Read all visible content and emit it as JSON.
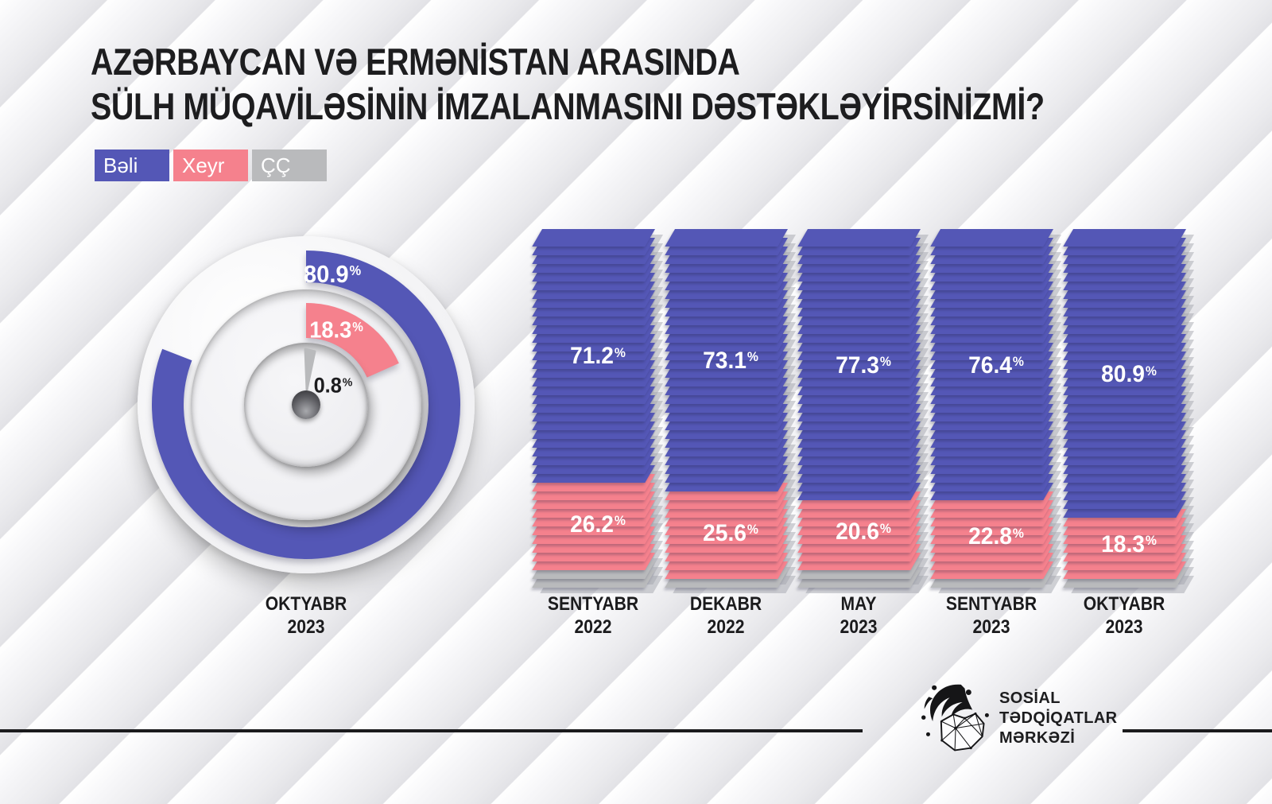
{
  "title": {
    "line1": "AZƏRBAYCAN VƏ ERMƏNİSTAN ARASINDA",
    "line2": "SÜLH MÜQAVİLƏSİNİN İMZALANMASINI DƏSTƏKLƏYİRSİNİZMİ?"
  },
  "colors": {
    "yes": "#5457b6",
    "no": "#f5818d",
    "cc": "#b9babc",
    "ink": "#1d1d1f"
  },
  "legend": {
    "items": [
      {
        "label": "Bəli",
        "color": "#5457b6"
      },
      {
        "label": "Xeyr",
        "color": "#f5818d"
      },
      {
        "label": "ÇÇ",
        "color": "#b9babc"
      }
    ]
  },
  "chart_data": [
    {
      "type": "donut",
      "title": "OKTYABR 2023",
      "category_lines": [
        "OKTYABR",
        "2023"
      ],
      "series": [
        {
          "name": "Bəli",
          "value": 80.9,
          "color": "#5457b6",
          "label": "80.9%"
        },
        {
          "name": "Xeyr",
          "value": 18.3,
          "color": "#f5818d",
          "label": "18.3%"
        },
        {
          "name": "ÇÇ",
          "value": 0.8,
          "color": "#b9babc",
          "label": "0.8%"
        }
      ],
      "start_angle": "top",
      "direction": "clockwise"
    },
    {
      "type": "stacked-bar",
      "categories": [
        [
          "SENTYABR",
          "2022"
        ],
        [
          "DEKABR",
          "2022"
        ],
        [
          "MAY",
          "2023"
        ],
        [
          "SENTYABR",
          "2023"
        ],
        [
          "OKTYABR",
          "2023"
        ]
      ],
      "series": [
        {
          "name": "Bəli",
          "color": "#5457b6",
          "values": [
            71.2,
            73.1,
            77.3,
            76.4,
            80.9
          ],
          "labels_shown": true
        },
        {
          "name": "Xeyr",
          "color": "#f5818d",
          "values": [
            26.2,
            25.6,
            20.6,
            22.8,
            18.3
          ],
          "labels_shown": true
        },
        {
          "name": "ÇÇ",
          "color": "#b9babc",
          "values": [
            2.6,
            1.3,
            2.1,
            0.8,
            0.8
          ],
          "labels_shown": false
        }
      ],
      "ylim": [
        0,
        100
      ],
      "grid": false,
      "legend_position": "top-left"
    }
  ],
  "footer": {
    "org_lines": [
      "SOSİAL",
      "TƏDQİQATLAR",
      "MƏRKƏZİ"
    ]
  }
}
